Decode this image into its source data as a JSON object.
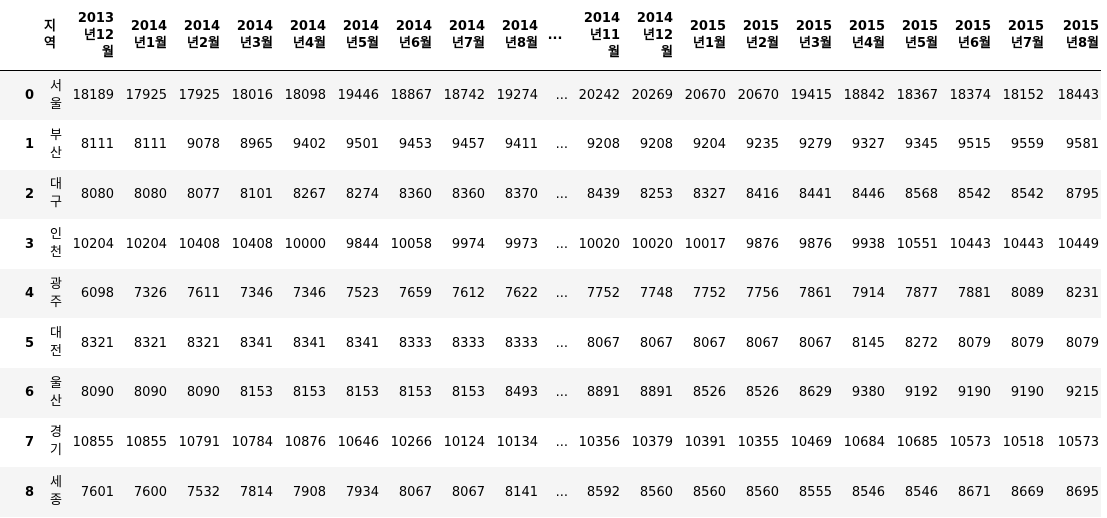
{
  "dataframe": {
    "columns": [
      {
        "key": "index",
        "lines": [
          ""
        ]
      },
      {
        "key": "region",
        "lines": [
          "지",
          "역"
        ]
      },
      {
        "key": "c0",
        "lines": [
          "2013",
          "년12",
          "월"
        ]
      },
      {
        "key": "c1",
        "lines": [
          "2014",
          "년1월"
        ]
      },
      {
        "key": "c2",
        "lines": [
          "2014",
          "년2월"
        ]
      },
      {
        "key": "c3",
        "lines": [
          "2014",
          "년3월"
        ]
      },
      {
        "key": "c4",
        "lines": [
          "2014",
          "년4월"
        ]
      },
      {
        "key": "c5",
        "lines": [
          "2014",
          "년5월"
        ]
      },
      {
        "key": "c6",
        "lines": [
          "2014",
          "년6월"
        ]
      },
      {
        "key": "c7",
        "lines": [
          "2014",
          "년7월"
        ]
      },
      {
        "key": "c8",
        "lines": [
          "2014",
          "년8월"
        ]
      },
      {
        "key": "ellipsis",
        "lines": [
          "..."
        ]
      },
      {
        "key": "c9",
        "lines": [
          "2014",
          "년11",
          "월"
        ]
      },
      {
        "key": "c10",
        "lines": [
          "2014",
          "년12",
          "월"
        ]
      },
      {
        "key": "c11",
        "lines": [
          "2015",
          "년1월"
        ]
      },
      {
        "key": "c12",
        "lines": [
          "2015",
          "년2월"
        ]
      },
      {
        "key": "c13",
        "lines": [
          "2015",
          "년3월"
        ]
      },
      {
        "key": "c14",
        "lines": [
          "2015",
          "년4월"
        ]
      },
      {
        "key": "c15",
        "lines": [
          "2015",
          "년5월"
        ]
      },
      {
        "key": "c16",
        "lines": [
          "2015",
          "년6월"
        ]
      },
      {
        "key": "c17",
        "lines": [
          "2015",
          "년7월"
        ]
      },
      {
        "key": "c18",
        "lines": [
          "2015",
          "년8월"
        ]
      }
    ],
    "rows": [
      {
        "index": "0",
        "region": [
          "서",
          "울"
        ],
        "values": [
          "18189",
          "17925",
          "17925",
          "18016",
          "18098",
          "19446",
          "18867",
          "18742",
          "19274",
          "...",
          "20242",
          "20269",
          "20670",
          "20670",
          "19415",
          "18842",
          "18367",
          "18374",
          "18152",
          "18443"
        ]
      },
      {
        "index": "1",
        "region": [
          "부",
          "산"
        ],
        "values": [
          "8111",
          "8111",
          "9078",
          "8965",
          "9402",
          "9501",
          "9453",
          "9457",
          "9411",
          "...",
          "9208",
          "9208",
          "9204",
          "9235",
          "9279",
          "9327",
          "9345",
          "9515",
          "9559",
          "9581"
        ]
      },
      {
        "index": "2",
        "region": [
          "대",
          "구"
        ],
        "values": [
          "8080",
          "8080",
          "8077",
          "8101",
          "8267",
          "8274",
          "8360",
          "8360",
          "8370",
          "...",
          "8439",
          "8253",
          "8327",
          "8416",
          "8441",
          "8446",
          "8568",
          "8542",
          "8542",
          "8795"
        ]
      },
      {
        "index": "3",
        "region": [
          "인",
          "천"
        ],
        "values": [
          "10204",
          "10204",
          "10408",
          "10408",
          "10000",
          "9844",
          "10058",
          "9974",
          "9973",
          "...",
          "10020",
          "10020",
          "10017",
          "9876",
          "9876",
          "9938",
          "10551",
          "10443",
          "10443",
          "10449"
        ]
      },
      {
        "index": "4",
        "region": [
          "광",
          "주"
        ],
        "values": [
          "6098",
          "7326",
          "7611",
          "7346",
          "7346",
          "7523",
          "7659",
          "7612",
          "7622",
          "...",
          "7752",
          "7748",
          "7752",
          "7756",
          "7861",
          "7914",
          "7877",
          "7881",
          "8089",
          "8231"
        ]
      },
      {
        "index": "5",
        "region": [
          "대",
          "전"
        ],
        "values": [
          "8321",
          "8321",
          "8321",
          "8341",
          "8341",
          "8341",
          "8333",
          "8333",
          "8333",
          "...",
          "8067",
          "8067",
          "8067",
          "8067",
          "8067",
          "8145",
          "8272",
          "8079",
          "8079",
          "8079"
        ]
      },
      {
        "index": "6",
        "region": [
          "울",
          "산"
        ],
        "values": [
          "8090",
          "8090",
          "8090",
          "8153",
          "8153",
          "8153",
          "8153",
          "8153",
          "8493",
          "...",
          "8891",
          "8891",
          "8526",
          "8526",
          "8629",
          "9380",
          "9192",
          "9190",
          "9190",
          "9215"
        ]
      },
      {
        "index": "7",
        "region": [
          "경",
          "기"
        ],
        "values": [
          "10855",
          "10855",
          "10791",
          "10784",
          "10876",
          "10646",
          "10266",
          "10124",
          "10134",
          "...",
          "10356",
          "10379",
          "10391",
          "10355",
          "10469",
          "10684",
          "10685",
          "10573",
          "10518",
          "10573"
        ]
      },
      {
        "index": "8",
        "region": [
          "세",
          "종"
        ],
        "values": [
          "7601",
          "7600",
          "7532",
          "7814",
          "7908",
          "7934",
          "8067",
          "8067",
          "8141",
          "...",
          "8592",
          "8560",
          "8560",
          "8560",
          "8555",
          "8546",
          "8546",
          "8671",
          "8669",
          "8695"
        ]
      }
    ]
  }
}
